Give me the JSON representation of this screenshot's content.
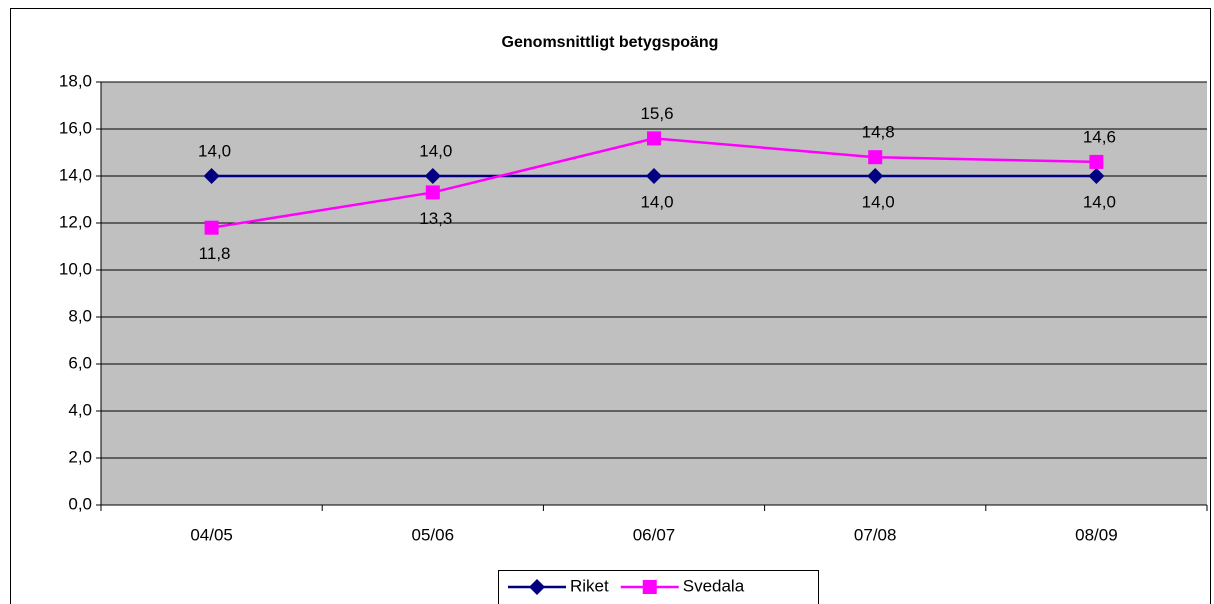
{
  "chart_data": {
    "type": "line",
    "title": "Genomsnittligt betygspoäng",
    "categories": [
      "04/05",
      "05/06",
      "06/07",
      "07/08",
      "08/09"
    ],
    "series": [
      {
        "name": "Riket",
        "color": "#000080",
        "marker": "diamond",
        "values": [
          14.0,
          14.0,
          14.0,
          14.0,
          14.0
        ],
        "value_labels": [
          "14,0",
          "14,0",
          "14,0",
          "14,0",
          "14,0"
        ]
      },
      {
        "name": "Svedala",
        "color": "#ff00ff",
        "marker": "square",
        "values": [
          11.8,
          13.3,
          15.6,
          14.8,
          14.6
        ],
        "value_labels": [
          "11,8",
          "13,3",
          "15,6",
          "14,8",
          "14,6"
        ]
      }
    ],
    "ylim": [
      0,
      18
    ],
    "yticks": [
      {
        "value": 0,
        "label": "0,0"
      },
      {
        "value": 2,
        "label": "2,0"
      },
      {
        "value": 4,
        "label": "4,0"
      },
      {
        "value": 6,
        "label": "6,0"
      },
      {
        "value": 8,
        "label": "8,0"
      },
      {
        "value": 10,
        "label": "10,0"
      },
      {
        "value": 12,
        "label": "12,0"
      },
      {
        "value": 14,
        "label": "14,0"
      },
      {
        "value": 16,
        "label": "16,0"
      },
      {
        "value": 18,
        "label": "18,0"
      }
    ],
    "grid": true,
    "plot_background": "#c0c0c0",
    "legend": "bottom"
  }
}
